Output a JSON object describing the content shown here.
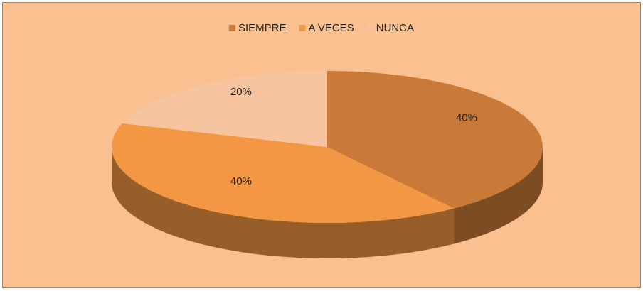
{
  "chart_data": {
    "type": "pie3d",
    "categories": [
      "SIEMPRE",
      "A VECES",
      "NUNCA"
    ],
    "values": [
      40,
      40,
      20
    ],
    "value_labels": [
      "40%",
      "40%",
      "20%"
    ],
    "colors": [
      "#c97a38",
      "#f39744",
      "#f7c4a0"
    ],
    "legend": "top",
    "background": "#fac08f"
  }
}
